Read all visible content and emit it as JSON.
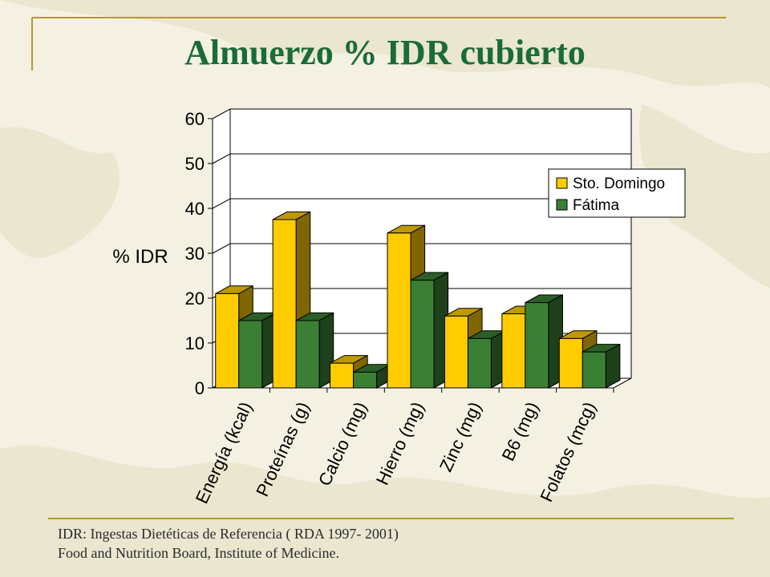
{
  "slide": {
    "title": "Almuerzo  % IDR cubierto",
    "footer_line1": "IDR: Ingestas Dietéticas de Referencia ( RDA 1997- 2001)",
    "footer_line2": "Food and Nutrition Board, Institute of  Medicine.",
    "colors": {
      "title": "#1a6b38",
      "accent_line": "#b39b2a",
      "background": "#f4f1e2"
    }
  },
  "chart_data": {
    "type": "bar",
    "title": "",
    "xlabel": "",
    "ylabel": "% IDR",
    "ylim": [
      0,
      60
    ],
    "yticks": [
      0,
      10,
      20,
      30,
      40,
      50,
      60
    ],
    "grid": true,
    "legend_position": "right",
    "categories": [
      "Energía (kcal)",
      "Proteínas (g)",
      "Calcio (mg)",
      "Hierro (mg)",
      "Zinc (mg)",
      "B6 (mg)",
      "Folatos (mcg)"
    ],
    "series": [
      {
        "name": "Sto. Domingo",
        "color": "#ffcc00",
        "values": [
          21,
          37.5,
          5.5,
          34.5,
          16,
          16.5,
          11
        ]
      },
      {
        "name": "Fátima",
        "color": "#3b7f35",
        "values": [
          15,
          15,
          3.5,
          24,
          11,
          19,
          8
        ]
      }
    ]
  }
}
